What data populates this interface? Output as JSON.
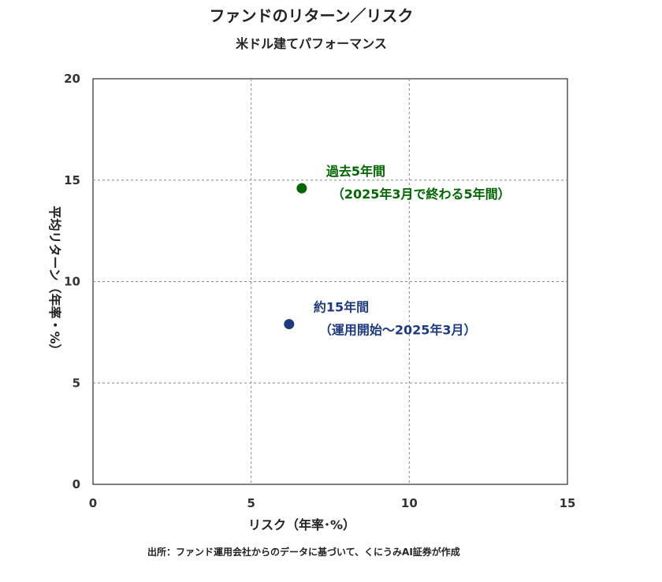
{
  "chart_data": {
    "type": "scatter",
    "title": "ファンドのリターン／リスク",
    "subtitle": "米ドル建てパフォーマンス",
    "xlabel": "リスク（年率･%）",
    "ylabel": "平均リターン（年率・%）",
    "xlim": [
      0,
      15
    ],
    "ylim": [
      0,
      20
    ],
    "x_ticks": [
      "0",
      "5",
      "10",
      "15"
    ],
    "y_ticks": [
      "0",
      "5",
      "10",
      "15",
      "20"
    ],
    "grid": true,
    "points": [
      {
        "x": 6.6,
        "y": 14.6,
        "color": "#006400",
        "label_line1": "過去5年間",
        "label_line2": "（2025年3月で終わる5年間）"
      },
      {
        "x": 6.2,
        "y": 7.9,
        "color": "#1f3a7a",
        "label_line1": "約15年間",
        "label_line2": "（運用開始～2025年3月）"
      }
    ]
  },
  "source_note": "出所：ファンド運用会社からのデータに基づいて、くにうみAI証券が作成"
}
